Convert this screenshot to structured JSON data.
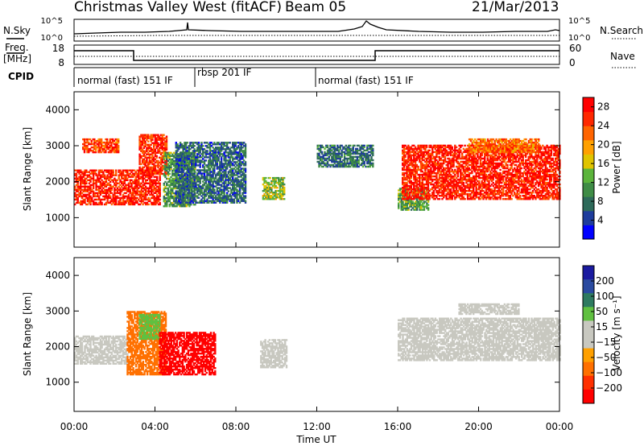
{
  "header": {
    "title": "Christmas Valley West (fitACF)",
    "beam": "Beam 05",
    "date": "21/Mar/2013"
  },
  "noise_panel": {
    "left_label": "N.Sky",
    "right_label": "N.Search",
    "left_ticks": [
      "10^5",
      "10^0"
    ],
    "right_ticks": [
      "10^5",
      "10^0"
    ]
  },
  "freq_panel": {
    "left_label_1": "Freq.",
    "left_label_2": "[MHz]",
    "right_label": "Nave",
    "left_ticks": [
      "18",
      "8"
    ],
    "right_ticks": [
      "60",
      "0"
    ]
  },
  "cpid_panel": {
    "label": "CPID",
    "segments": [
      {
        "label": "normal (fast) 151 IF",
        "start_hour": 0
      },
      {
        "label": "rbsp 201 IF",
        "start_hour": 6
      },
      {
        "label": "normal (fast) 151 IF",
        "start_hour": 12
      }
    ]
  },
  "time_axis": {
    "label": "Time UT",
    "ticks": [
      "00:00",
      "04:00",
      "08:00",
      "12:00",
      "16:00",
      "20:00",
      "00:00"
    ],
    "tick_hours": [
      0,
      4,
      8,
      12,
      16,
      20,
      24
    ]
  },
  "chart_data": [
    {
      "type": "heatmap",
      "quantity": "Power",
      "xlabel": "Time UT",
      "ylabel": "Slant Range [km]",
      "xlim_hours": [
        0,
        24
      ],
      "ylim_km": [
        180,
        4500
      ],
      "y_ticks": [
        "1000",
        "2000",
        "3000",
        "4000"
      ],
      "y_tick_values": [
        1000,
        2000,
        3000,
        4000
      ],
      "colorbar": {
        "label": "Power [dB]",
        "ticks": [
          "4",
          "8",
          "12",
          "16",
          "20",
          "24",
          "28"
        ],
        "tick_values": [
          4,
          8,
          12,
          16,
          20,
          24,
          28
        ],
        "range": [
          0,
          30
        ],
        "colors": [
          "#0000ff",
          "#1e3c9c",
          "#2e6a5a",
          "#3f8c46",
          "#5cb43c",
          "#e0c400",
          "#ffa000",
          "#ff6400",
          "#ff2800",
          "#ff0000"
        ]
      },
      "regions": [
        {
          "t0": 0.0,
          "t1": 4.2,
          "r0": 1350,
          "r1": 2300,
          "value": 27
        },
        {
          "t0": 0.4,
          "t1": 2.2,
          "r0": 2800,
          "r1": 3200,
          "value": 25
        },
        {
          "t0": 3.2,
          "t1": 4.6,
          "r0": 2200,
          "r1": 3300,
          "value": 26
        },
        {
          "t0": 4.4,
          "t1": 6.0,
          "r0": 1300,
          "r1": 2800,
          "value": 11
        },
        {
          "t0": 5.0,
          "t1": 8.5,
          "r0": 1400,
          "r1": 3100,
          "value": 7
        },
        {
          "t0": 9.3,
          "t1": 10.4,
          "r0": 1500,
          "r1": 2100,
          "value": 14
        },
        {
          "t0": 12.0,
          "t1": 14.8,
          "r0": 2400,
          "r1": 3000,
          "value": 8
        },
        {
          "t0": 16.0,
          "t1": 17.5,
          "r0": 1200,
          "r1": 1800,
          "value": 12
        },
        {
          "t0": 16.2,
          "t1": 24.0,
          "r0": 1500,
          "r1": 3000,
          "value": 27
        },
        {
          "t0": 19.5,
          "t1": 23.0,
          "r0": 2800,
          "r1": 3200,
          "value": 22
        }
      ]
    },
    {
      "type": "heatmap",
      "quantity": "Velocity",
      "xlabel": "Time UT",
      "ylabel": "Slant Range [km]",
      "xlim_hours": [
        0,
        24
      ],
      "ylim_km": [
        180,
        4500
      ],
      "y_ticks": [
        "1000",
        "2000",
        "3000",
        "4000"
      ],
      "y_tick_values": [
        1000,
        2000,
        3000,
        4000
      ],
      "colorbar": {
        "label": "Velocity [m s⁻¹]",
        "ticks": [
          "200",
          "100",
          "50",
          "15",
          "−15",
          "−50",
          "−100",
          "−200"
        ],
        "colors": [
          "#1a1aa0",
          "#2a4aa0",
          "#2e7a60",
          "#60c040",
          "#c8c8c0",
          "#c8c8c0",
          "#ffa000",
          "#ff7000",
          "#ff3000",
          "#ff0000"
        ]
      },
      "regions": [
        {
          "t0": 0.0,
          "t1": 2.6,
          "r0": 1500,
          "r1": 2300,
          "value": 0
        },
        {
          "t0": 2.6,
          "t1": 4.5,
          "r0": 1200,
          "r1": 3000,
          "value": -60
        },
        {
          "t0": 3.2,
          "t1": 4.2,
          "r0": 2200,
          "r1": 2900,
          "value": 30
        },
        {
          "t0": 4.2,
          "t1": 7.0,
          "r0": 1200,
          "r1": 2400,
          "value": -210
        },
        {
          "t0": 9.2,
          "t1": 10.5,
          "r0": 1400,
          "r1": 2200,
          "value": 0
        },
        {
          "t0": 16.0,
          "t1": 24.0,
          "r0": 1600,
          "r1": 2800,
          "value": 0
        },
        {
          "t0": 19.0,
          "t1": 22.0,
          "r0": 2900,
          "r1": 3200,
          "value": 0
        }
      ]
    }
  ]
}
